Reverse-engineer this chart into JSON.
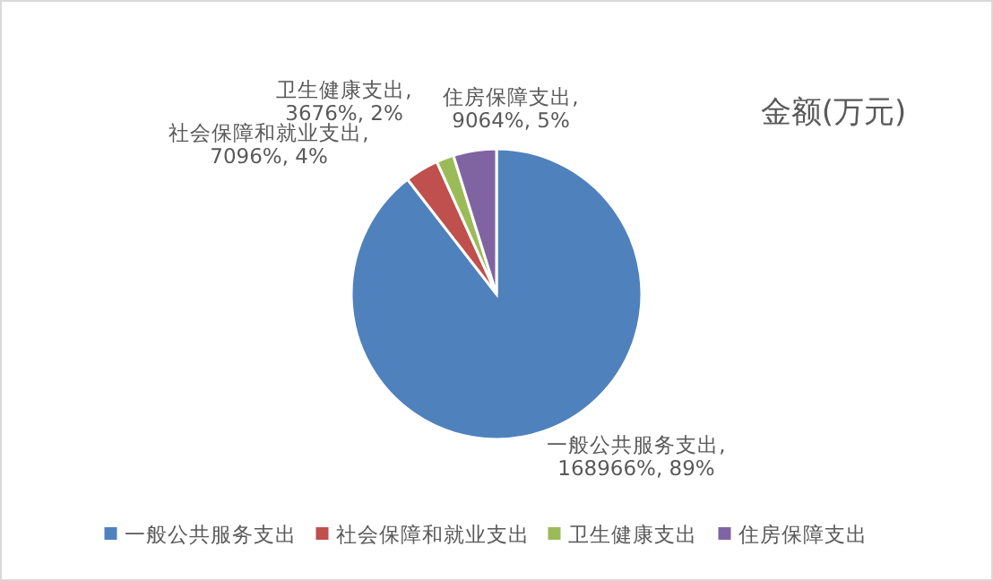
{
  "chart_data": {
    "type": "pie",
    "title": "金额(万元)",
    "categories": [
      "一般公共服务支出",
      "社会保障和就业支出",
      "卫生健康支出",
      "住房保障支出"
    ],
    "values": [
      168966,
      7096,
      3676,
      9064
    ],
    "colors": [
      "#4f81bd",
      "#c0504d",
      "#9bbb59",
      "#8064a2"
    ],
    "value_labels": [
      "一般公共服务支出, 168966%, 89%",
      "社会保障和就业支出, 7096%, 4%",
      "卫生健康支出, 3676%, 2%",
      "住房保障支出, 9064%, 5%"
    ],
    "legend": "bottom"
  }
}
